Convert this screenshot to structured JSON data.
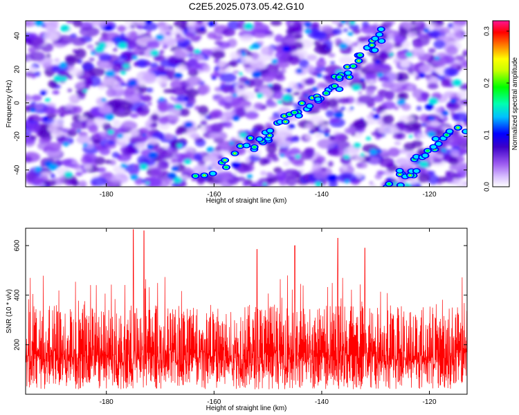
{
  "figure": {
    "title": "C2E5.2025.073.05.42.G10"
  },
  "chart_data": [
    {
      "type": "heatmap",
      "title": "",
      "xlabel": "Height of straight line (km)",
      "ylabel": "Frequency (Hz)",
      "xlim": [
        -195,
        -113
      ],
      "ylim": [
        -50,
        49
      ],
      "x_ticks": [
        -180,
        -160,
        -140,
        -120
      ],
      "y_ticks": [
        -40,
        -20,
        0,
        20,
        40
      ],
      "colorbar": {
        "label": "Normalized spectral amplitude",
        "range": [
          0.0,
          0.32
        ],
        "ticks": [
          0.0,
          0.1,
          0.2,
          0.3
        ],
        "tick_labels": [
          "0.0",
          "0.1",
          "0.2",
          "0.3"
        ],
        "colors": [
          "#ffffff",
          "#c8a0ff",
          "#8a2be2",
          "#4b0082",
          "#0000ff",
          "#00ffff",
          "#00ff00",
          "#ffff00",
          "#ff8000",
          "#ff0000",
          "#ff1493"
        ]
      },
      "ridge": {
        "description_points": [
          {
            "x": -163,
            "y": -45
          },
          {
            "x": -153,
            "y": -25
          },
          {
            "x": -150,
            "y": -18
          },
          {
            "x": -144,
            "y": -5
          },
          {
            "x": -140,
            "y": 5
          },
          {
            "x": -136,
            "y": 15
          },
          {
            "x": -132,
            "y": 30
          },
          {
            "x": -129,
            "y": 42
          }
        ],
        "second_ridge": [
          {
            "x": -127,
            "y": -48
          },
          {
            "x": -123,
            "y": -40
          },
          {
            "x": -119,
            "y": -24
          },
          {
            "x": -114,
            "y": -14
          }
        ]
      }
    },
    {
      "type": "line",
      "title": "",
      "xlabel": "Height of straight line (km)",
      "ylabel": "SNR (10 * v/v)",
      "xlim": [
        -195,
        -113
      ],
      "ylim": [
        0,
        670
      ],
      "x_ticks": [
        -180,
        -160,
        -140,
        -120
      ],
      "y_ticks": [
        200,
        400,
        600
      ],
      "series": [
        {
          "color": "#ff0000",
          "summary": {
            "baseline_mean": 180,
            "typical_max": 400,
            "peaks": [
              {
                "x": -175,
                "y": 665
              },
              {
                "x": -173,
                "y": 660
              },
              {
                "x": -137,
                "y": 630
              },
              {
                "x": -145,
                "y": 600
              },
              {
                "x": -132,
                "y": 590
              },
              {
                "x": -152,
                "y": 585
              }
            ]
          }
        }
      ]
    }
  ],
  "colors": {
    "line": "#ff0000",
    "frame": "#000000"
  }
}
